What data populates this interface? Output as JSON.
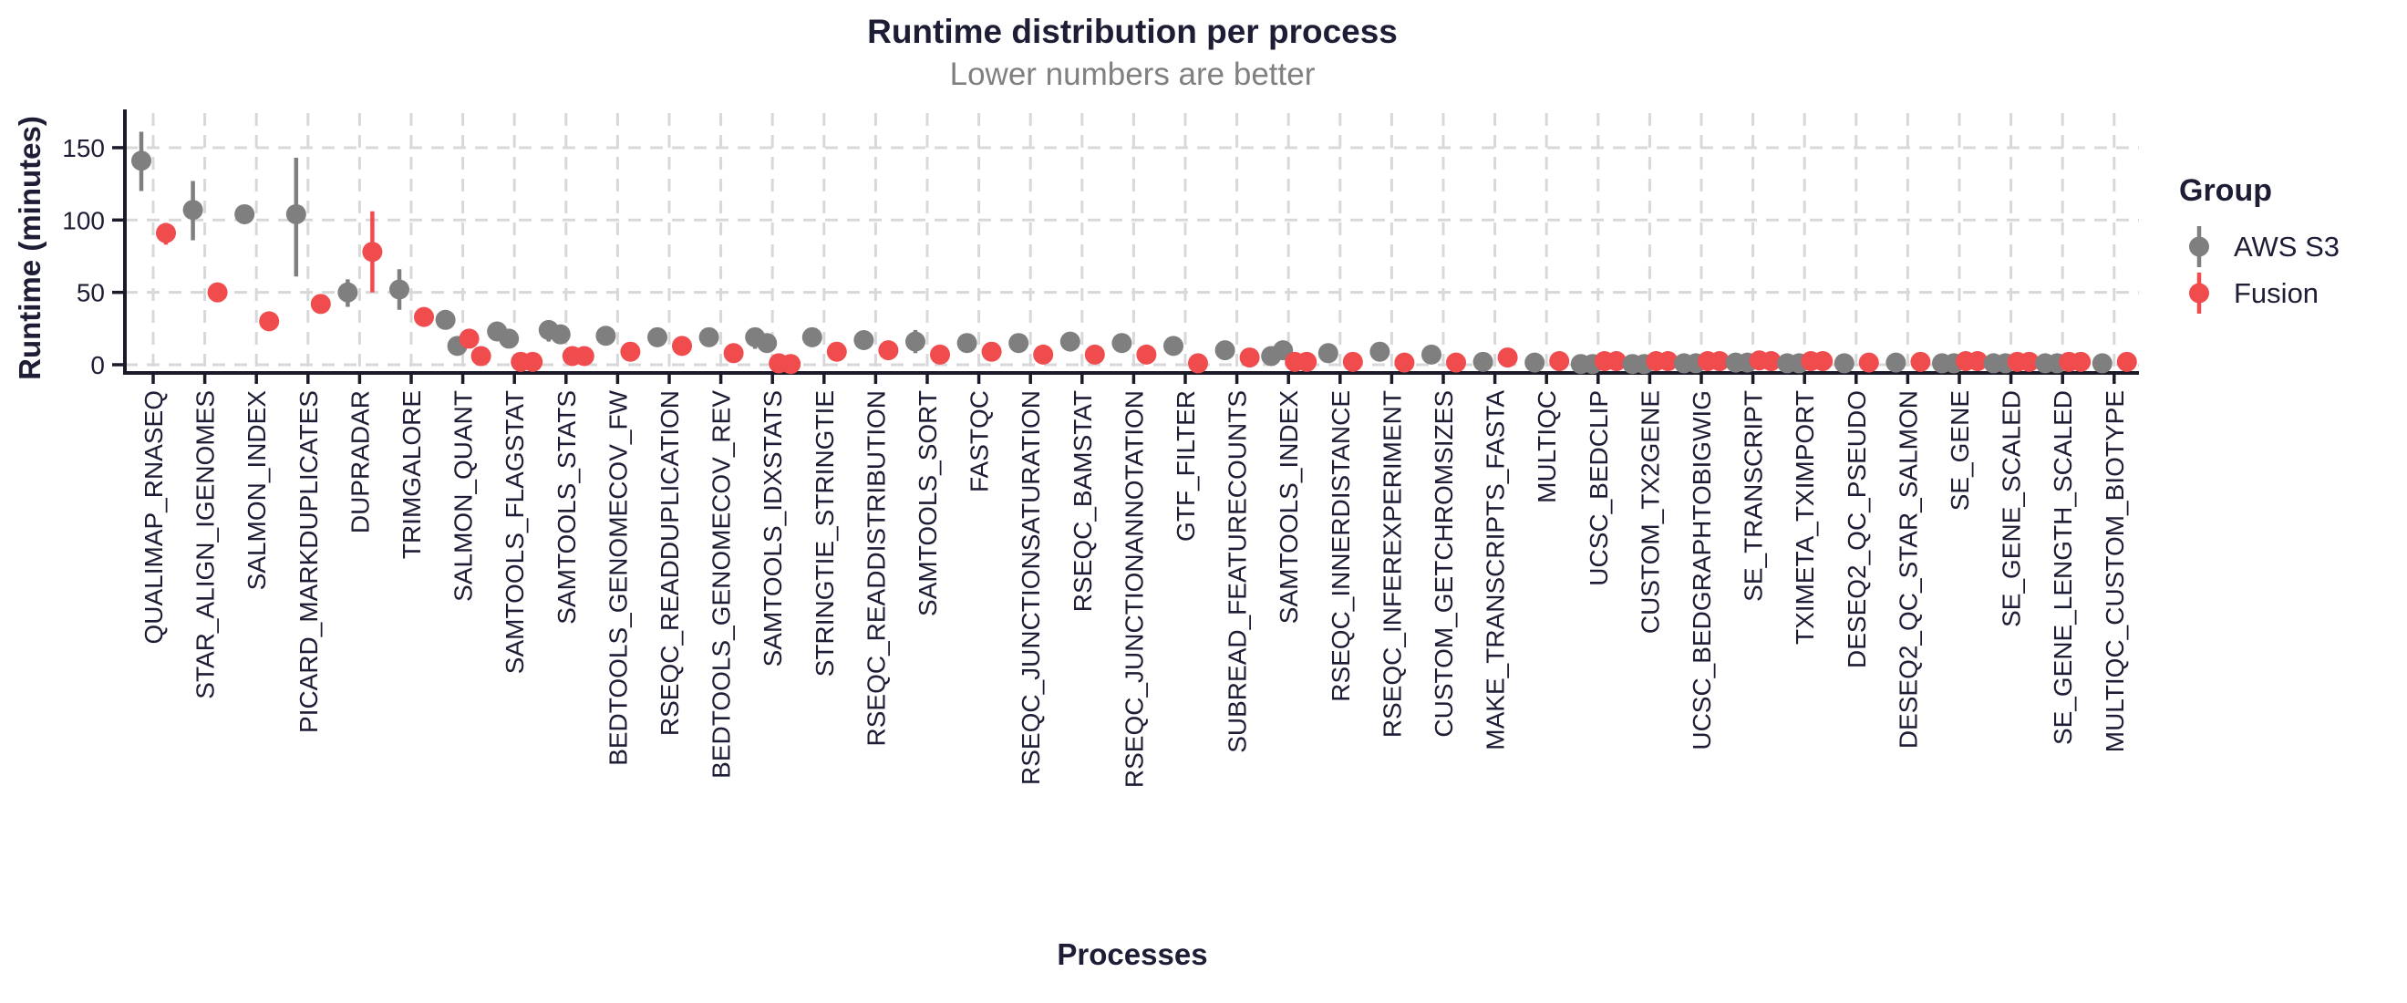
{
  "chart_data": {
    "type": "scatter",
    "title": "Runtime distribution per process",
    "subtitle": "Lower numbers are better",
    "xlabel": "Processes",
    "ylabel": "Runtime (minutes)",
    "ylim": [
      0,
      168
    ],
    "yticks": [
      0,
      50,
      100,
      150
    ],
    "grid": true,
    "legend": {
      "title": "Group",
      "position": "right",
      "entries": [
        {
          "id": "aws_s3",
          "label": "AWS S3",
          "color": "#7f7f7f"
        },
        {
          "id": "fusion",
          "label": "Fusion",
          "color": "#f04b4d"
        }
      ]
    },
    "colors": {
      "aws_s3": "#7f7f7f",
      "fusion": "#f04b4d",
      "text": "#1d1d35",
      "subtitle": "#808080",
      "grid": "#d8d8d8",
      "axis": "#1a1a28"
    },
    "processes": [
      {
        "name": "QUALIMAP_RNASEQ",
        "aws_s3": [
          141
        ],
        "aws_s3_range": [
          120,
          161
        ],
        "fusion": [
          91
        ],
        "fusion_range": [
          83,
          98
        ]
      },
      {
        "name": "STAR_ALIGN_IGENOMES",
        "aws_s3": [
          107
        ],
        "aws_s3_range": [
          86,
          127
        ],
        "fusion": [
          50
        ]
      },
      {
        "name": "SALMON_INDEX",
        "aws_s3": [
          104
        ],
        "fusion": [
          30
        ]
      },
      {
        "name": "PICARD_MARKDUPLICATES",
        "aws_s3": [
          104
        ],
        "aws_s3_range": [
          61,
          143
        ],
        "fusion": [
          42
        ]
      },
      {
        "name": "DUPRADAR",
        "aws_s3": [
          50
        ],
        "aws_s3_range": [
          40,
          59
        ],
        "fusion": [
          78
        ],
        "fusion_range": [
          50,
          106
        ]
      },
      {
        "name": "TRIMGALORE",
        "aws_s3": [
          52
        ],
        "aws_s3_range": [
          38,
          66
        ],
        "fusion": [
          33
        ]
      },
      {
        "name": "SALMON_QUANT",
        "aws_s3": [
          31,
          13
        ],
        "fusion": [
          18,
          6
        ]
      },
      {
        "name": "SAMTOOLS_FLAGSTAT",
        "aws_s3": [
          23,
          18
        ],
        "fusion": [
          2,
          2
        ]
      },
      {
        "name": "SAMTOOLS_STATS",
        "aws_s3": [
          24,
          21
        ],
        "aws_s3_range": [
          16,
          26
        ],
        "fusion": [
          6,
          6
        ]
      },
      {
        "name": "BEDTOOLS_GENOMECOV_FW",
        "aws_s3": [
          20
        ],
        "fusion": [
          9
        ]
      },
      {
        "name": "RSEQC_READDUPLICATION",
        "aws_s3": [
          19
        ],
        "fusion": [
          13
        ]
      },
      {
        "name": "BEDTOOLS_GENOMECOV_REV",
        "aws_s3": [
          19
        ],
        "fusion": [
          8
        ]
      },
      {
        "name": "SAMTOOLS_IDXSTATS",
        "aws_s3": [
          19,
          15
        ],
        "aws_s3_range": [
          11,
          23
        ],
        "fusion": [
          1,
          0.5
        ]
      },
      {
        "name": "STRINGTIE_STRINGTIE",
        "aws_s3": [
          19
        ],
        "fusion": [
          9
        ]
      },
      {
        "name": "RSEQC_READDISTRIBUTION",
        "aws_s3": [
          17
        ],
        "fusion": [
          10
        ]
      },
      {
        "name": "SAMTOOLS_SORT",
        "aws_s3": [
          16
        ],
        "aws_s3_range": [
          8,
          24
        ],
        "fusion": [
          7
        ]
      },
      {
        "name": "FASTQC",
        "aws_s3": [
          15
        ],
        "fusion": [
          9
        ]
      },
      {
        "name": "RSEQC_JUNCTIONSATURATION",
        "aws_s3": [
          15
        ],
        "fusion": [
          7
        ]
      },
      {
        "name": "RSEQC_BAMSTAT",
        "aws_s3": [
          16
        ],
        "fusion": [
          7
        ]
      },
      {
        "name": "RSEQC_JUNCTIONANNOTATION",
        "aws_s3": [
          15
        ],
        "fusion": [
          7
        ]
      },
      {
        "name": "GTF_FILTER",
        "aws_s3": [
          13
        ],
        "fusion": [
          1
        ]
      },
      {
        "name": "SUBREAD_FEATURECOUNTS",
        "aws_s3": [
          10
        ],
        "fusion": [
          5
        ]
      },
      {
        "name": "SAMTOOLS_INDEX",
        "aws_s3": [
          6,
          10
        ],
        "fusion": [
          2,
          2
        ]
      },
      {
        "name": "RSEQC_INNERDISTANCE",
        "aws_s3": [
          8
        ],
        "fusion": [
          2
        ]
      },
      {
        "name": "RSEQC_INFEREXPERIMENT",
        "aws_s3": [
          9
        ],
        "fusion": [
          1.5
        ]
      },
      {
        "name": "CUSTOM_GETCHROMSIZES",
        "aws_s3": [
          7
        ],
        "fusion": [
          1.5
        ]
      },
      {
        "name": "MAKE_TRANSCRIPTS_FASTA",
        "aws_s3": [
          2
        ],
        "fusion": [
          5
        ]
      },
      {
        "name": "MULTIQC",
        "aws_s3": [
          1.5
        ],
        "fusion": [
          2.5
        ]
      },
      {
        "name": "UCSC_BEDCLIP",
        "aws_s3": [
          0.5,
          0.5
        ],
        "fusion": [
          2.5,
          2.5
        ]
      },
      {
        "name": "CUSTOM_TX2GENE",
        "aws_s3": [
          0.5,
          0.5
        ],
        "fusion": [
          2.5,
          2.5
        ]
      },
      {
        "name": "UCSC_BEDGRAPHTOBIGWIG",
        "aws_s3": [
          1,
          1
        ],
        "fusion": [
          2.5,
          2.5
        ]
      },
      {
        "name": "SE_TRANSCRIPT",
        "aws_s3": [
          1.5,
          1.5
        ],
        "fusion": [
          3,
          2.5
        ]
      },
      {
        "name": "TXIMETA_TXIMPORT",
        "aws_s3": [
          1,
          1
        ],
        "fusion": [
          2.5,
          2.5
        ]
      },
      {
        "name": "DESEQ2_QC_PSEUDO",
        "aws_s3": [
          1
        ],
        "fusion": [
          1.5
        ]
      },
      {
        "name": "DESEQ2_QC_STAR_SALMON",
        "aws_s3": [
          1.5
        ],
        "fusion": [
          2
        ]
      },
      {
        "name": "SE_GENE",
        "aws_s3": [
          1,
          1
        ],
        "fusion": [
          2.5,
          2.5
        ]
      },
      {
        "name": "SE_GENE_SCALED",
        "aws_s3": [
          1,
          1
        ],
        "fusion": [
          2,
          2
        ]
      },
      {
        "name": "SE_GENE_LENGTH_SCALED",
        "aws_s3": [
          1,
          1
        ],
        "fusion": [
          2,
          2
        ]
      },
      {
        "name": "MULTIQC_CUSTOM_BIOTYPE",
        "aws_s3": [
          1
        ],
        "fusion": [
          2
        ]
      }
    ]
  }
}
